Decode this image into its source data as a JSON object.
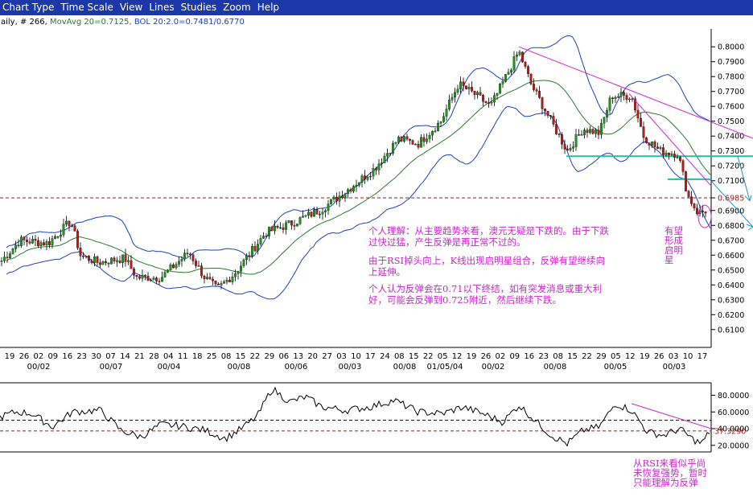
{
  "menu": [
    "Chart Type",
    "Time Scale",
    "View",
    "Lines",
    "Studies",
    "Zoom",
    "Help"
  ],
  "infobar": {
    "symbol": "aily, # 266,",
    "movavg": "MovAvg 20=0.7125,",
    "bol": "BOL 20:2.0=0.7481/0.6770"
  },
  "colors": {
    "menubar": "#1c38a8",
    "candle_up": "#1a9a1a",
    "candle_down": "#c01818",
    "bollinger": "#1a40c0",
    "moving_average": "#2a7a2a",
    "support_line": "#20c0a0",
    "resistance_dash": "#a01818",
    "trendline": "#d020d0",
    "annotation": "#d020d0"
  },
  "chart_data": [
    {
      "type": "candlestick",
      "studies": [
        "MovAvg 20",
        "BOL 20:2.0"
      ],
      "ylim": [
        0.598,
        0.812
      ],
      "y_ticks": [
        "0.8000",
        "0.7900",
        "0.7800",
        "0.7700",
        "0.7600",
        "0.7500",
        "0.7400",
        "0.7300",
        "0.7200",
        "0.7100",
        "0.6985",
        "0.6900",
        "0.6800",
        "0.6700",
        "0.6600",
        "0.6500",
        "0.6400",
        "0.6300",
        "0.6200",
        "0.6100"
      ],
      "price_marker": "0.6985",
      "horizontal_lines": [
        {
          "style": "dashed",
          "value": 0.6985
        },
        {
          "style": "solid",
          "value": 0.7265
        },
        {
          "style": "solid",
          "value": 0.711
        }
      ],
      "x_day_ticks": [
        "19",
        "26",
        "02",
        "09",
        "16",
        "23",
        "30",
        "07",
        "14",
        "21",
        "28",
        "04",
        "11",
        "18",
        "25",
        "08",
        "15",
        "22",
        "29",
        "06",
        "13",
        "20",
        "27",
        "03",
        "10",
        "17",
        "24",
        "08",
        "15",
        "22",
        "05",
        "12",
        "19",
        "26",
        "02",
        "09",
        "16",
        "23",
        "08",
        "15",
        "22",
        "29",
        "05",
        "12",
        "19",
        "26",
        "03",
        "10",
        "17"
      ],
      "x_month_ticks": [
        "00/02",
        "00/07",
        "00/04",
        "00/08",
        "00/06",
        "00/03",
        "00/08",
        "01/05/04",
        "00/02",
        "00/08",
        "00/05",
        "00/03"
      ],
      "series": [
        {
          "name": "MovAvg 20",
          "last": 0.7125
        },
        {
          "name": "BOL 20:2.0",
          "upper": 0.7481,
          "lower": 0.677
        }
      ],
      "key_levels": [
        {
          "x": 0,
          "close": 0.655
        },
        {
          "x": 25,
          "close": 0.67
        },
        {
          "x": 60,
          "close": 0.668
        },
        {
          "x": 88,
          "close": 0.683
        },
        {
          "x": 100,
          "close": 0.66
        },
        {
          "x": 122,
          "close": 0.655
        },
        {
          "x": 155,
          "close": 0.658
        },
        {
          "x": 170,
          "close": 0.645
        },
        {
          "x": 200,
          "close": 0.645
        },
        {
          "x": 235,
          "close": 0.662
        },
        {
          "x": 253,
          "close": 0.646
        },
        {
          "x": 270,
          "close": 0.637
        },
        {
          "x": 292,
          "close": 0.648
        },
        {
          "x": 330,
          "close": 0.675
        },
        {
          "x": 365,
          "close": 0.682
        },
        {
          "x": 400,
          "close": 0.691
        },
        {
          "x": 430,
          "close": 0.703
        },
        {
          "x": 465,
          "close": 0.718
        },
        {
          "x": 495,
          "close": 0.738
        },
        {
          "x": 520,
          "close": 0.735
        },
        {
          "x": 548,
          "close": 0.75
        },
        {
          "x": 570,
          "close": 0.775
        },
        {
          "x": 590,
          "close": 0.768
        },
        {
          "x": 610,
          "close": 0.76
        },
        {
          "x": 645,
          "close": 0.797
        },
        {
          "x": 660,
          "close": 0.775
        },
        {
          "x": 680,
          "close": 0.755
        },
        {
          "x": 705,
          "close": 0.73
        },
        {
          "x": 725,
          "close": 0.745
        },
        {
          "x": 745,
          "close": 0.742
        },
        {
          "x": 760,
          "close": 0.767
        },
        {
          "x": 785,
          "close": 0.767
        },
        {
          "x": 800,
          "close": 0.74
        },
        {
          "x": 820,
          "close": 0.73
        },
        {
          "x": 843,
          "close": 0.728
        },
        {
          "x": 855,
          "close": 0.7
        },
        {
          "x": 868,
          "close": 0.688
        },
        {
          "x": 878,
          "close": 0.69
        }
      ]
    },
    {
      "type": "line",
      "name": "RSI",
      "ylim": [
        14,
        93
      ],
      "y_ticks": [
        "80.0000",
        "60.0000",
        "40.0000",
        "20.0000"
      ],
      "marker": "37.3290",
      "reference_lines": [
        {
          "style": "dashed",
          "value": 50
        },
        {
          "style": "dashed",
          "value": 37.3
        }
      ],
      "key_values": [
        {
          "x": 0,
          "y": 54
        },
        {
          "x": 20,
          "y": 60
        },
        {
          "x": 40,
          "y": 58
        },
        {
          "x": 65,
          "y": 42
        },
        {
          "x": 90,
          "y": 60
        },
        {
          "x": 125,
          "y": 62
        },
        {
          "x": 150,
          "y": 38
        },
        {
          "x": 175,
          "y": 30
        },
        {
          "x": 200,
          "y": 45
        },
        {
          "x": 225,
          "y": 43
        },
        {
          "x": 255,
          "y": 38
        },
        {
          "x": 280,
          "y": 28
        },
        {
          "x": 300,
          "y": 40
        },
        {
          "x": 320,
          "y": 55
        },
        {
          "x": 338,
          "y": 88
        },
        {
          "x": 360,
          "y": 72
        },
        {
          "x": 380,
          "y": 78
        },
        {
          "x": 400,
          "y": 66
        },
        {
          "x": 430,
          "y": 62
        },
        {
          "x": 460,
          "y": 66
        },
        {
          "x": 490,
          "y": 74
        },
        {
          "x": 520,
          "y": 60
        },
        {
          "x": 550,
          "y": 58
        },
        {
          "x": 575,
          "y": 66
        },
        {
          "x": 600,
          "y": 58
        },
        {
          "x": 625,
          "y": 48
        },
        {
          "x": 645,
          "y": 68
        },
        {
          "x": 665,
          "y": 50
        },
        {
          "x": 685,
          "y": 32
        },
        {
          "x": 705,
          "y": 22
        },
        {
          "x": 725,
          "y": 38
        },
        {
          "x": 745,
          "y": 42
        },
        {
          "x": 765,
          "y": 70
        },
        {
          "x": 785,
          "y": 62
        },
        {
          "x": 805,
          "y": 36
        },
        {
          "x": 825,
          "y": 32
        },
        {
          "x": 845,
          "y": 40
        },
        {
          "x": 860,
          "y": 28
        },
        {
          "x": 872,
          "y": 22
        },
        {
          "x": 882,
          "y": 36
        }
      ]
    }
  ],
  "annotations": {
    "note1": "个人理解：从主要趋势来看，澳元无疑是下跌的。由于下跌过快过猛，产生反弹是再正常不过的。",
    "note2": "由于RSI掉头向上，K线出现启明星组合，反弹有望继续向上延伸。",
    "note3": "个人认为反弹会在0.71以下终结，如有突发消息或重大利好，可能会反弹到0.725附近，然后继续下跌。",
    "morning_star": [
      "有望",
      "形成",
      "启明",
      "星"
    ],
    "rsi_note": [
      "从RSI来看似乎尚",
      "未恢复强势，暂时",
      "只能理解为反弹"
    ]
  }
}
